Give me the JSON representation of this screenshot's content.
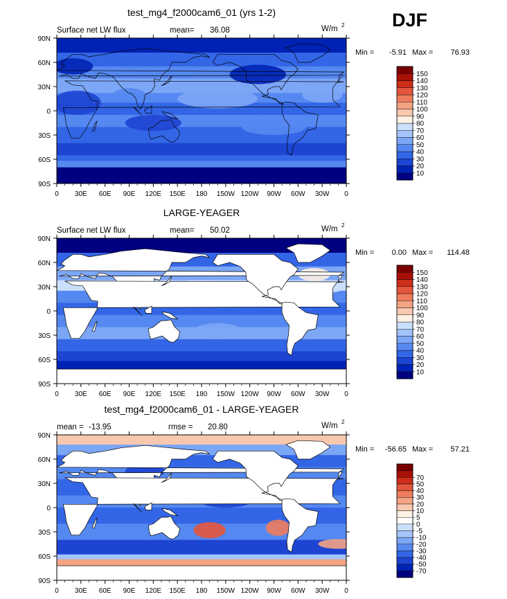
{
  "season": "DJF",
  "colors": {
    "panel_1_3": [
      "#000080",
      "#0022b4",
      "#1e44d2",
      "#3366e6",
      "#5588f0",
      "#7ca6f6",
      "#a4c4fa",
      "#cadffc",
      "#fdf0e4",
      "#f8c8ae",
      "#f4a384",
      "#ef7c5c",
      "#e4563c",
      "#cc2e1a",
      "#a81008",
      "#7a0000"
    ],
    "diff": [
      "#000080",
      "#0022b4",
      "#1e44d2",
      "#3366e6",
      "#5588f0",
      "#7ca6f6",
      "#a4c4fa",
      "#cadffc",
      "#ffffff",
      "#fdf0e4",
      "#f8c8ae",
      "#f4a384",
      "#ef7c5c",
      "#e4563c",
      "#cc2e1a",
      "#a81008",
      "#7a0000"
    ],
    "land": "#ffffff"
  },
  "x_ticks": [
    "0",
    "30E",
    "60E",
    "90E",
    "120E",
    "150E",
    "180",
    "150W",
    "120W",
    "90W",
    "60W",
    "30W",
    "0"
  ],
  "y_ticks": [
    "90N",
    "60N",
    "30N",
    "0",
    "30S",
    "60S",
    "90S"
  ],
  "chart_data": [
    {
      "type": "heatmap",
      "title": "test_mg4_f2000cam6_01 (yrs 1-2)",
      "left_label": "Surface net LW flux",
      "mean_label": "mean=",
      "mean_value": "36.08",
      "units_label": "W/m",
      "units_exp": "2",
      "min_label": "Min =",
      "min_value": "-5.91",
      "max_label": "Max =",
      "max_value": "76.93",
      "min": -5.91,
      "max": 76.93,
      "mean": 36.08,
      "xlim": [
        0,
        360
      ],
      "ylim": [
        -90,
        90
      ],
      "levels": [
        "10",
        "20",
        "30",
        "40",
        "50",
        "60",
        "70",
        "80",
        "90",
        "100",
        "110",
        "120",
        "130",
        "140",
        "150"
      ]
    },
    {
      "type": "heatmap",
      "title": "LARGE-YEAGER",
      "left_label": "Surface net LW flux",
      "mean_label": "mean=",
      "mean_value": "50.02",
      "units_label": "W/m",
      "units_exp": "2",
      "min_label": "Min =",
      "min_value": "0.00",
      "max_label": "Max =",
      "max_value": "114.48",
      "min": 0.0,
      "max": 114.48,
      "mean": 50.02,
      "xlim": [
        0,
        360
      ],
      "ylim": [
        -90,
        90
      ],
      "levels": [
        "10",
        "20",
        "30",
        "40",
        "50",
        "60",
        "70",
        "80",
        "90",
        "100",
        "110",
        "120",
        "130",
        "140",
        "150"
      ]
    },
    {
      "type": "heatmap",
      "title": "test_mg4_f2000cam6_01 - LARGE-YEAGER",
      "left_label": "mean =",
      "mean_label": "-13.95",
      "mean_value": "rmse =",
      "rmse_value": "20.80",
      "units_label": "W/m",
      "units_exp": "2",
      "min_label": "Min =",
      "min_value": "-56.65",
      "max_label": "Max =",
      "max_value": "57.21",
      "min": -56.65,
      "max": 57.21,
      "mean": -13.95,
      "rmse": 20.8,
      "xlim": [
        0,
        360
      ],
      "ylim": [
        -90,
        90
      ],
      "levels": [
        "-70",
        "-50",
        "-40",
        "-30",
        "-20",
        "-10",
        "-5",
        "0",
        "5",
        "10",
        "20",
        "30",
        "40",
        "50",
        "70"
      ]
    }
  ]
}
